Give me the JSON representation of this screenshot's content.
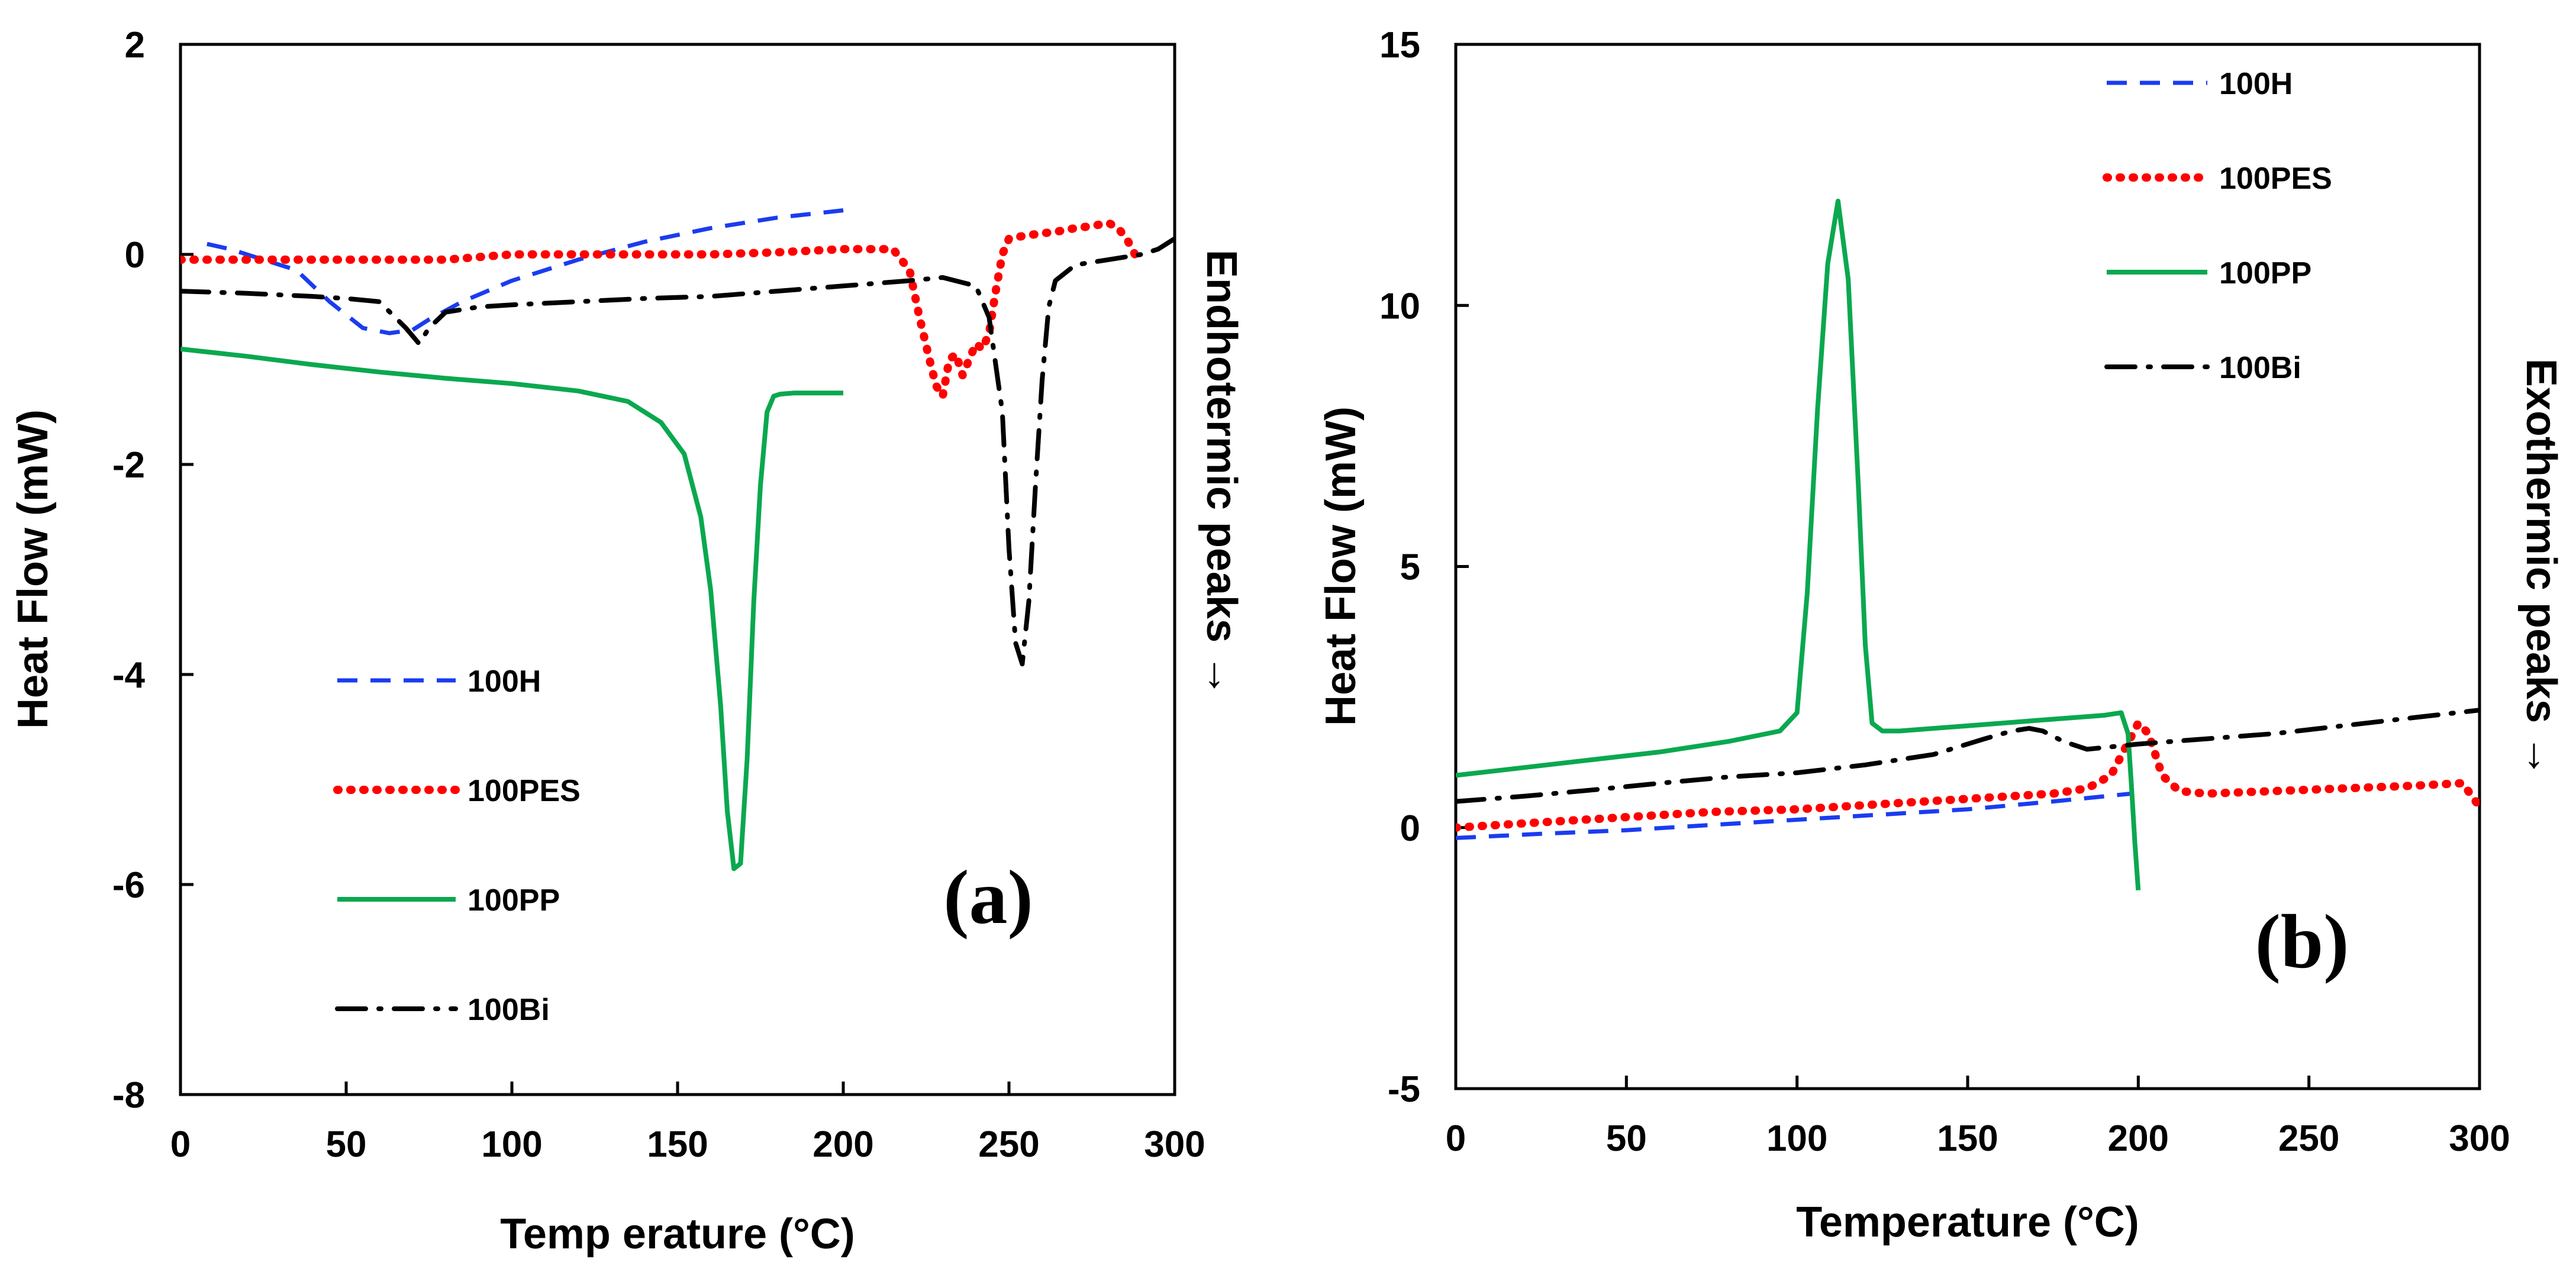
{
  "colors": {
    "100H": "#1a3cf0",
    "100PES": "#ff0000",
    "100PP": "#0aa84f",
    "100Bi": "#000000"
  },
  "chart_data": [
    {
      "type": "line",
      "panel_label": "(a)",
      "xlabel": "Temp erature (°C)",
      "ylabel": "Heat Flow (mW)",
      "side_label": "Endhotermic peaks →",
      "xlim": [
        0,
        300
      ],
      "ylim": [
        -8,
        2
      ],
      "xticks": [
        0,
        50,
        100,
        150,
        200,
        250,
        300
      ],
      "ytick_labels": [
        "2",
        "0",
        "-2",
        "-4",
        "-6",
        "-8"
      ],
      "legend_position": "lower-left",
      "series": [
        {
          "name": "100H",
          "style": "dashed",
          "x": [
            8,
            15,
            25,
            35,
            45,
            55,
            63,
            70,
            75,
            85,
            100,
            120,
            140,
            160,
            180,
            200
          ],
          "y": [
            0.1,
            0.05,
            -0.05,
            -0.15,
            -0.45,
            -0.7,
            -0.75,
            -0.72,
            -0.62,
            -0.45,
            -0.25,
            -0.05,
            0.12,
            0.25,
            0.35,
            0.42
          ]
        },
        {
          "name": "100PES",
          "style": "dotted",
          "x": [
            0,
            20,
            40,
            60,
            80,
            100,
            120,
            140,
            160,
            180,
            200,
            215,
            220,
            223,
            226,
            228,
            230,
            232,
            234,
            236,
            238,
            240,
            242,
            244,
            246,
            248,
            250,
            255,
            260,
            265,
            270,
            275,
            280,
            283,
            286,
            288,
            290
          ],
          "y": [
            -0.05,
            -0.05,
            -0.05,
            -0.05,
            -0.05,
            0.0,
            0.0,
            0.0,
            0.0,
            0.02,
            0.05,
            0.05,
            -0.15,
            -0.6,
            -1.0,
            -1.25,
            -1.35,
            -1.0,
            -0.95,
            -1.15,
            -1.0,
            -0.85,
            -0.9,
            -0.75,
            -0.35,
            0.0,
            0.15,
            0.18,
            0.2,
            0.22,
            0.25,
            0.27,
            0.3,
            0.25,
            0.12,
            0.0,
            -0.02
          ]
        },
        {
          "name": "100PP",
          "style": "solid",
          "x": [
            0,
            20,
            40,
            60,
            80,
            100,
            120,
            135,
            145,
            152,
            157,
            160,
            163,
            165,
            167,
            169,
            171,
            173,
            175,
            177,
            179,
            181,
            185,
            190,
            195,
            200
          ],
          "y": [
            -0.9,
            -0.97,
            -1.05,
            -1.12,
            -1.18,
            -1.23,
            -1.3,
            -1.4,
            -1.6,
            -1.9,
            -2.5,
            -3.2,
            -4.3,
            -5.3,
            -5.85,
            -5.8,
            -4.8,
            -3.3,
            -2.2,
            -1.5,
            -1.35,
            -1.33,
            -1.32,
            -1.32,
            -1.32,
            -1.32
          ],
          "linewidth": 5
        },
        {
          "name": "100Bi",
          "style": "dashdot",
          "x": [
            0,
            20,
            40,
            50,
            60,
            68,
            72,
            75,
            80,
            90,
            100,
            120,
            140,
            160,
            180,
            200,
            220,
            230,
            240,
            244,
            248,
            250,
            252,
            254,
            256,
            258,
            260,
            262,
            264,
            270,
            280,
            290,
            295,
            300
          ],
          "y": [
            -0.35,
            -0.37,
            -0.4,
            -0.42,
            -0.45,
            -0.7,
            -0.85,
            -0.7,
            -0.55,
            -0.5,
            -0.48,
            -0.45,
            -0.42,
            -0.4,
            -0.35,
            -0.3,
            -0.25,
            -0.22,
            -0.3,
            -0.6,
            -1.5,
            -2.8,
            -3.7,
            -3.9,
            -3.3,
            -2.2,
            -1.2,
            -0.5,
            -0.25,
            -0.1,
            -0.05,
            0.0,
            0.05,
            0.15
          ]
        }
      ]
    },
    {
      "type": "line",
      "panel_label": "(b)",
      "xlabel": "Temperature (°C)",
      "ylabel": "Heat Flow (mW)",
      "side_label": "Exothermic peaks →",
      "xlim": [
        0,
        300
      ],
      "ylim": [
        -5,
        15
      ],
      "xticks": [
        0,
        50,
        100,
        150,
        200,
        250,
        300
      ],
      "ytick_labels": [
        "15",
        "10",
        "5",
        "0",
        "-5"
      ],
      "legend_position": "upper-left",
      "series": [
        {
          "name": "100H",
          "style": "dashed",
          "x": [
            0,
            25,
            50,
            75,
            100,
            125,
            150,
            175,
            198
          ],
          "y": [
            -0.2,
            -0.12,
            -0.05,
            0.05,
            0.15,
            0.25,
            0.35,
            0.5,
            0.65
          ]
        },
        {
          "name": "100PES",
          "style": "dotted",
          "x": [
            0,
            25,
            50,
            75,
            100,
            125,
            150,
            175,
            185,
            192,
            196,
            200,
            203,
            207,
            212,
            220,
            240,
            260,
            280,
            295,
            300
          ],
          "y": [
            0.0,
            0.1,
            0.2,
            0.3,
            0.35,
            0.45,
            0.55,
            0.65,
            0.75,
            1.0,
            1.5,
            2.0,
            1.8,
            1.0,
            0.7,
            0.65,
            0.7,
            0.75,
            0.8,
            0.85,
            0.4
          ]
        },
        {
          "name": "100PP",
          "style": "solid",
          "x": [
            0,
            20,
            40,
            60,
            80,
            95,
            100,
            103,
            106,
            109,
            112,
            115,
            118,
            120,
            122,
            125,
            130,
            150,
            170,
            190,
            195,
            197,
            198,
            199,
            200
          ],
          "y": [
            1.0,
            1.15,
            1.3,
            1.45,
            1.65,
            1.85,
            2.2,
            4.5,
            8.0,
            10.8,
            12.0,
            10.5,
            6.5,
            3.5,
            2.0,
            1.85,
            1.85,
            1.95,
            2.05,
            2.15,
            2.2,
            1.8,
            0.8,
            -0.3,
            -1.2
          ],
          "linewidth": 5
        },
        {
          "name": "100Bi",
          "style": "dashdot",
          "x": [
            0,
            20,
            40,
            60,
            80,
            100,
            120,
            140,
            155,
            163,
            168,
            172,
            178,
            185,
            200,
            220,
            240,
            260,
            280,
            300
          ],
          "y": [
            0.5,
            0.6,
            0.72,
            0.85,
            0.97,
            1.05,
            1.2,
            1.4,
            1.7,
            1.85,
            1.9,
            1.85,
            1.65,
            1.5,
            1.6,
            1.7,
            1.8,
            1.95,
            2.1,
            2.25
          ]
        }
      ]
    }
  ]
}
